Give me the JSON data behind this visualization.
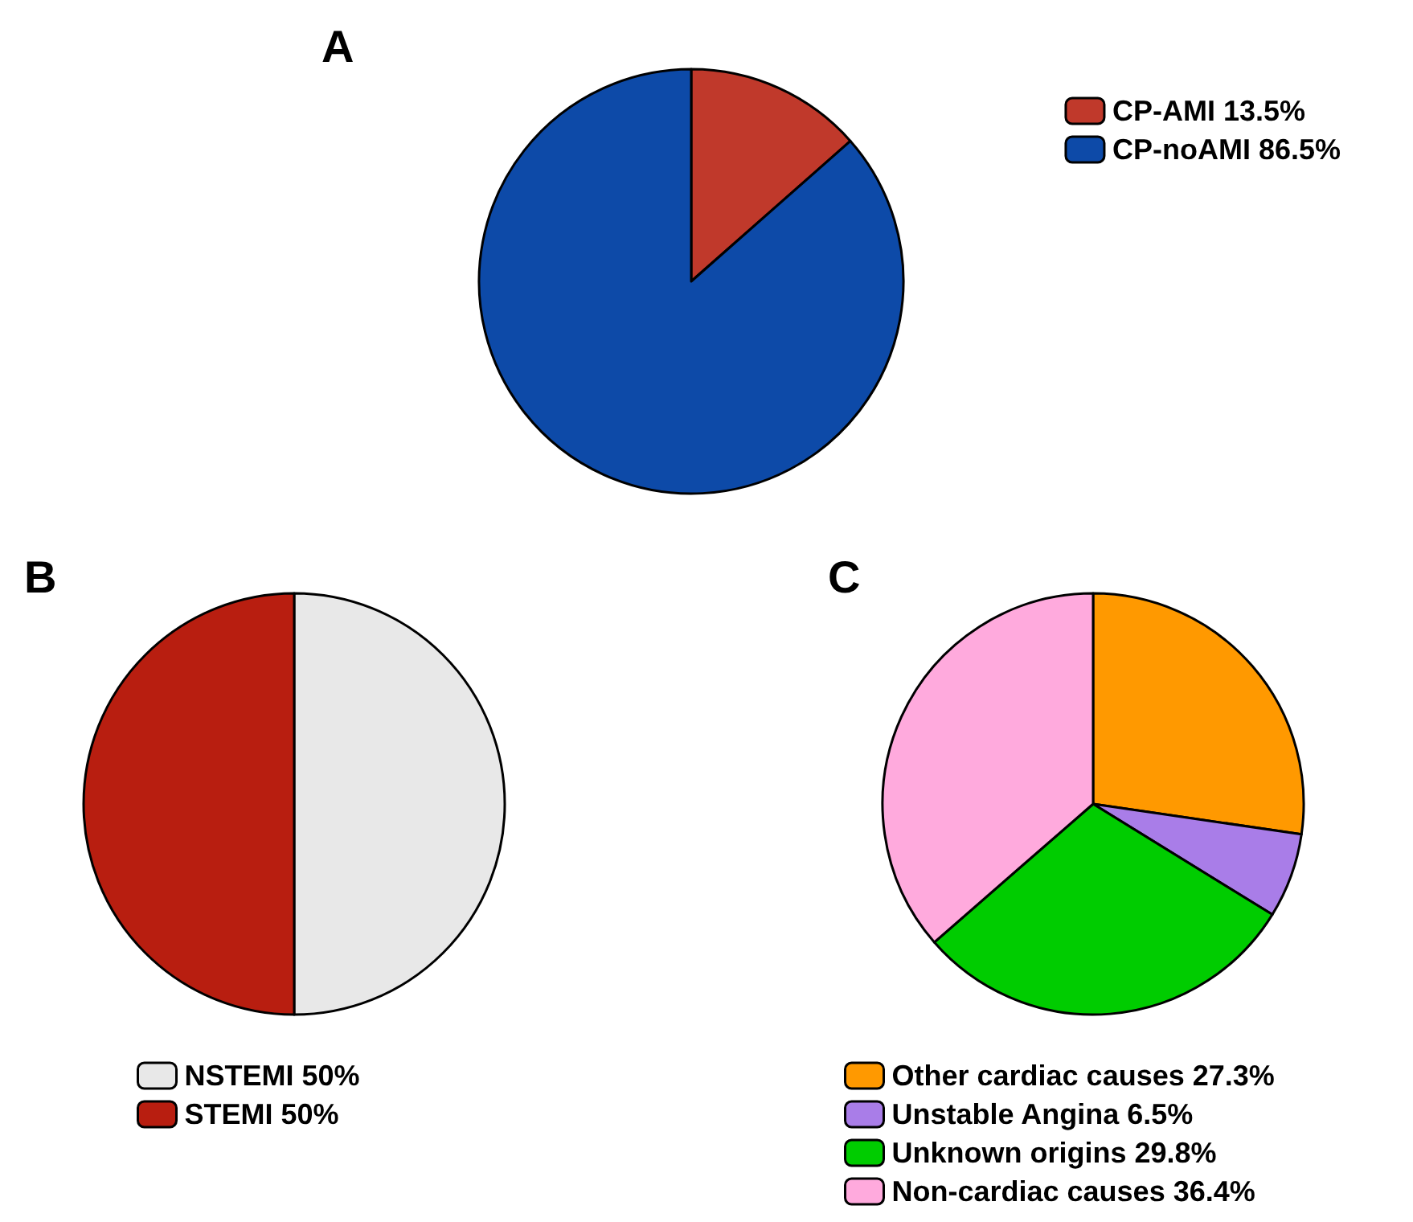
{
  "chart_data": [
    {
      "type": "pie",
      "title": "A",
      "categories": [
        "CP-AMI 13.5%",
        "CP-noAMI 86.5%"
      ],
      "values": [
        13.5,
        86.5
      ],
      "colors": [
        "#c0392b",
        "#0d4aa8"
      ],
      "legend": "top right"
    },
    {
      "type": "pie",
      "title": "B",
      "categories": [
        "NSTEMI 50%",
        "STEMI 50%"
      ],
      "values": [
        50,
        50
      ],
      "colors": [
        "#e8e8e8",
        "#b81e10"
      ],
      "legend": "bottom"
    },
    {
      "type": "pie",
      "title": "C",
      "categories": [
        "Other cardiac causes 27.3%",
        "Unstable Angina 6.5%",
        "Unknown origins 29.8%",
        "Non-cardiac causes 36.4%"
      ],
      "values": [
        27.3,
        6.5,
        29.8,
        36.4
      ],
      "colors": [
        "#ff9900",
        "#a97de8",
        "#00cc00",
        "#ffaadd"
      ],
      "legend": "bottom"
    }
  ]
}
